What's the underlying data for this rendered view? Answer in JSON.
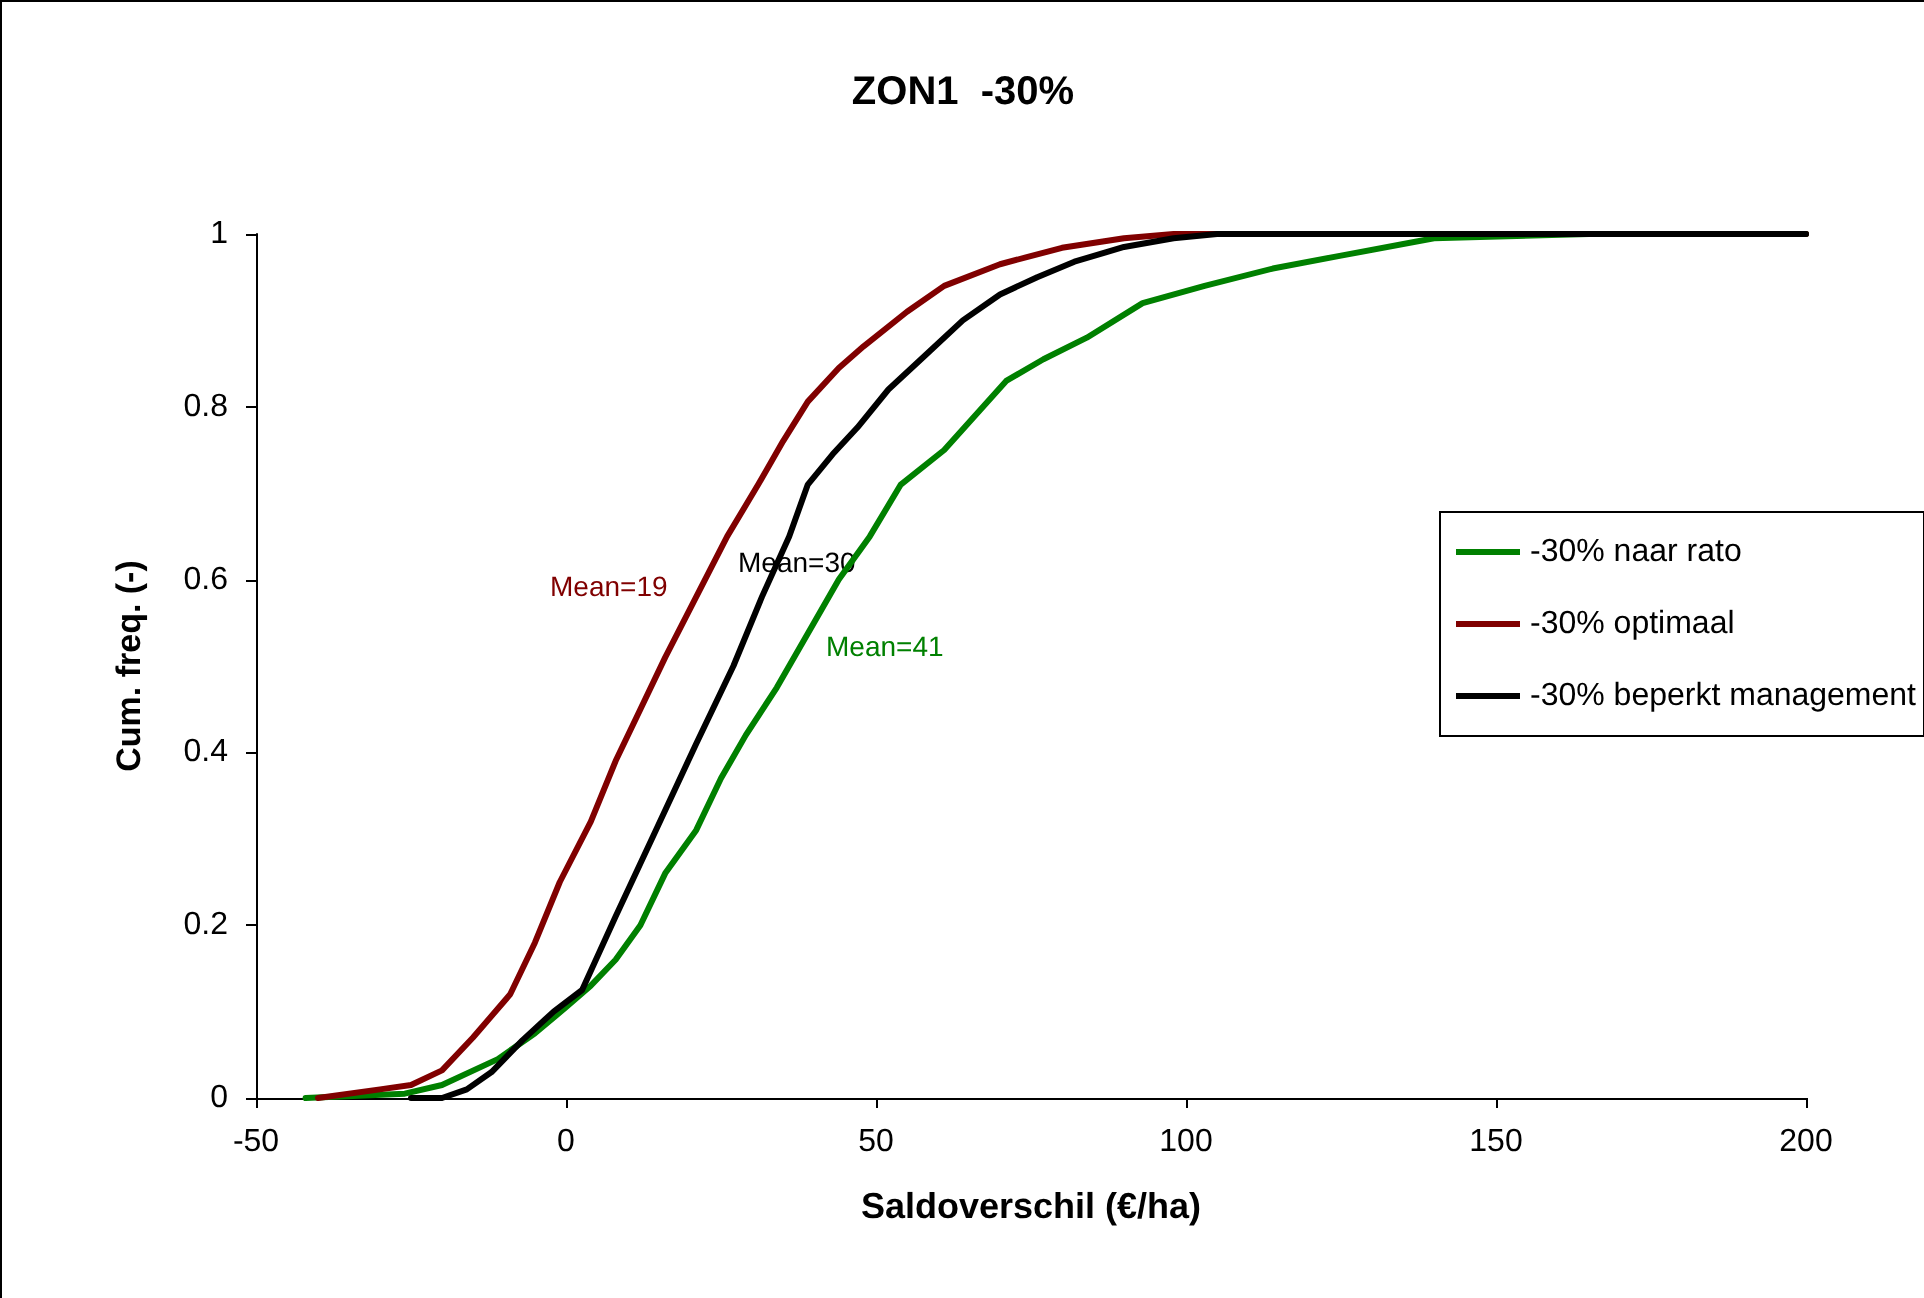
{
  "chart_data": {
    "type": "line",
    "title": "ZON1  -30%",
    "xlabel": "Saldoverschil (€/ha)",
    "ylabel": "Cum. freq. (-)",
    "xlim": [
      -50,
      200
    ],
    "xticks": [
      -50,
      0,
      50,
      100,
      150,
      200
    ],
    "ylim": [
      0,
      1
    ],
    "yticks": [
      0,
      0.2,
      0.4,
      0.6,
      0.8,
      1
    ],
    "grid": false,
    "legend": "right",
    "marker": "none",
    "line_style": "solid",
    "series": [
      {
        "name": "-30% naar rato",
        "color": "#008000",
        "x": [
          -42,
          -26,
          -20,
          -11,
          -5,
          0,
          4,
          8,
          12,
          16,
          21,
          25,
          29,
          34,
          40,
          44,
          49,
          54,
          61,
          66,
          71,
          77,
          84,
          93,
          103,
          114,
          125,
          140,
          165,
          200
        ],
        "values": [
          0,
          0.005,
          0.015,
          0.045,
          0.075,
          0.105,
          0.13,
          0.16,
          0.2,
          0.26,
          0.31,
          0.37,
          0.42,
          0.475,
          0.55,
          0.6,
          0.65,
          0.71,
          0.75,
          0.79,
          0.83,
          0.855,
          0.88,
          0.92,
          0.94,
          0.96,
          0.975,
          0.995,
          1,
          1
        ]
      },
      {
        "name": "-30% optimaal",
        "color": "#800000",
        "x": [
          -40,
          -30,
          -25,
          -20,
          -15,
          -9,
          -5,
          -1,
          4,
          8,
          12,
          16,
          21,
          26,
          31,
          35,
          39,
          44,
          48,
          55,
          61,
          70,
          80,
          90,
          98,
          200
        ],
        "values": [
          0,
          0.01,
          0.015,
          0.032,
          0.07,
          0.12,
          0.18,
          0.25,
          0.32,
          0.39,
          0.45,
          0.51,
          0.58,
          0.65,
          0.71,
          0.76,
          0.806,
          0.845,
          0.87,
          0.91,
          0.94,
          0.965,
          0.984,
          0.995,
          1,
          1
        ]
      },
      {
        "name": "-30% beperkt management",
        "color": "#000000",
        "x": [
          -25,
          -20,
          -16,
          -12,
          -7,
          -2,
          2.6,
          8,
          14.5,
          21,
          27,
          31.6,
          36,
          39,
          43,
          47,
          52,
          58,
          64,
          70,
          76,
          82,
          90,
          98,
          105,
          200
        ],
        "values": [
          0,
          0,
          0.01,
          0.03,
          0.067,
          0.1,
          0.125,
          0.21,
          0.31,
          0.41,
          0.5,
          0.58,
          0.65,
          0.71,
          0.745,
          0.776,
          0.82,
          0.86,
          0.9,
          0.93,
          0.95,
          0.968,
          0.985,
          0.995,
          1,
          1
        ]
      }
    ],
    "annotations": [
      "Mean=41",
      "Mean=19",
      "Mean=30"
    ]
  }
}
